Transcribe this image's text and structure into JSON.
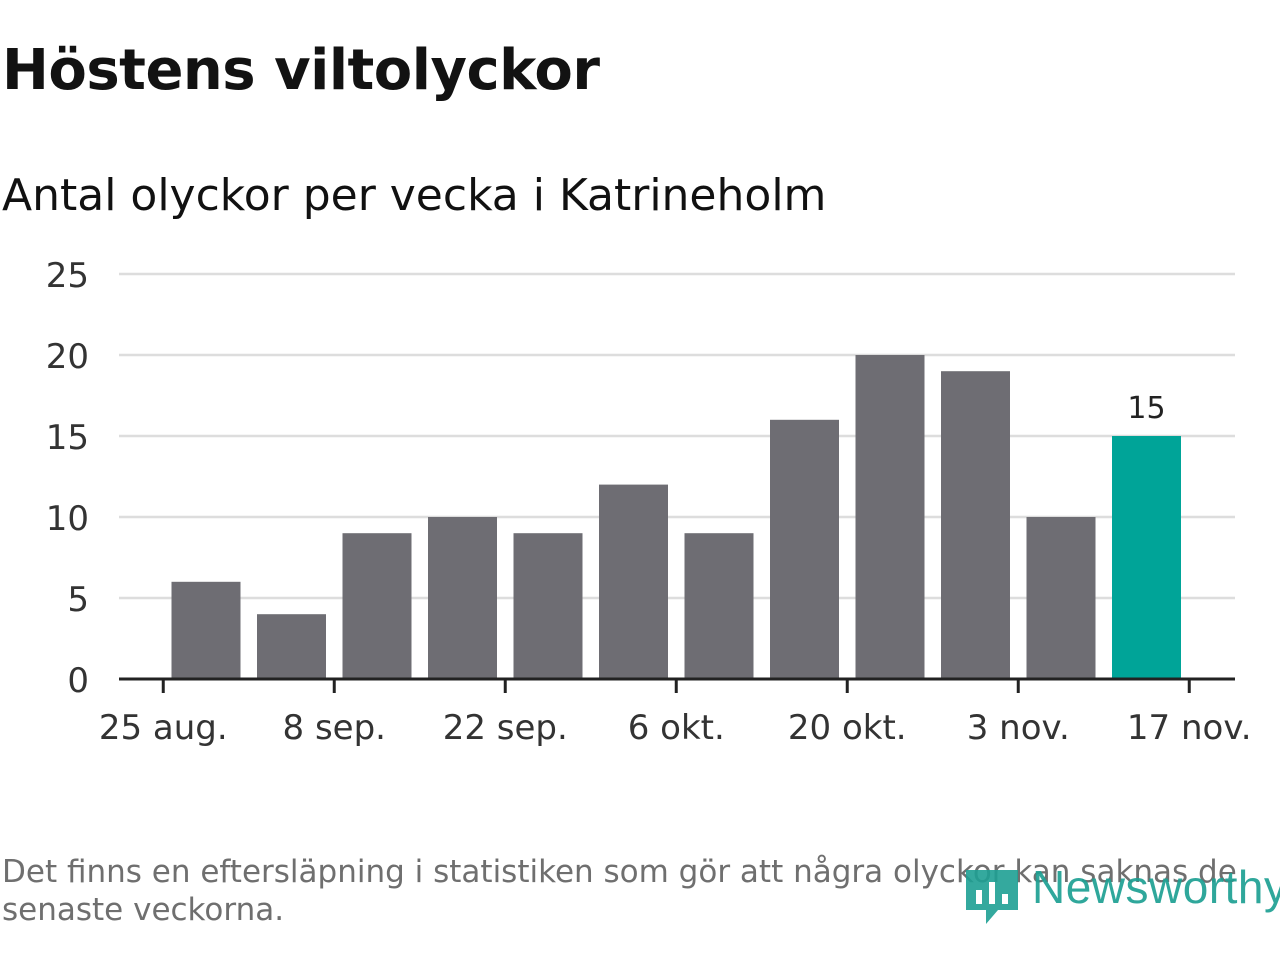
{
  "header": {
    "title": "Höstens viltolyckor",
    "subtitle": "Antal olyckor per vecka i Katrineholm"
  },
  "footnote": "Det finns en eftersläpning i statistiken som gör att några olyckor kan saknas de senaste veckorna.",
  "brand": {
    "name": "Newsworthy",
    "icon": "newsworthy-logo-icon",
    "color": "#1ea093"
  },
  "colors": {
    "bar": "#6e6d73",
    "highlight": "#00a498",
    "grid": "#dddddd",
    "axis": "#222222"
  },
  "chart_data": {
    "type": "bar",
    "title": "Höstens viltolyckor",
    "subtitle": "Antal olyckor per vecka i Katrineholm",
    "xlabel": "",
    "ylabel": "",
    "ylim": [
      0,
      25
    ],
    "yticks": [
      0,
      5,
      10,
      15,
      20,
      25
    ],
    "xtick_labels": [
      "25 aug.",
      "8 sep.",
      "22 sep.",
      "6 okt.",
      "20 okt.",
      "3 nov.",
      "17 nov."
    ],
    "values": [
      6,
      4,
      9,
      10,
      9,
      12,
      9,
      16,
      20,
      19,
      10,
      15
    ],
    "highlight_index": 11,
    "data_labels": [
      {
        "index": 11,
        "text": "15"
      }
    ],
    "grid": true,
    "legend": "none"
  }
}
